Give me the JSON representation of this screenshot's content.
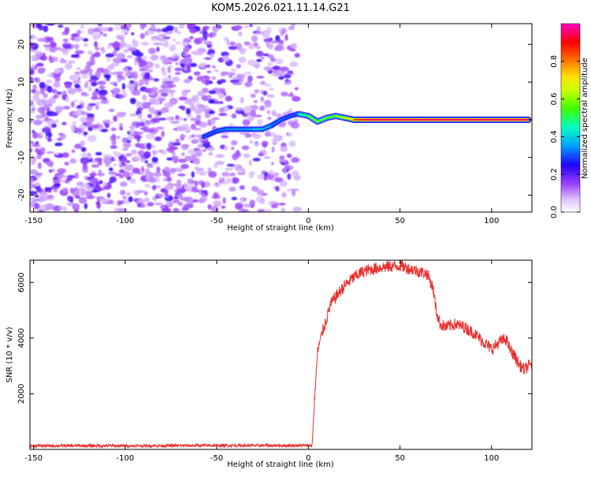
{
  "title": "KOM5.2026.021.11.14.G21",
  "chart_data": [
    {
      "type": "heatmap",
      "xlabel": "Height of straight line (km)",
      "ylabel": "Frequency (Hz)",
      "xlim": [
        -152,
        122
      ],
      "ylim": [
        -24.5,
        25.5
      ],
      "xticks": [
        -150,
        -100,
        -50,
        0,
        50,
        100
      ],
      "yticks": [
        -20,
        -10,
        0,
        10,
        20
      ],
      "colorbar": {
        "label": "Normalized spectral amplitude",
        "range": [
          0,
          1
        ],
        "ticks": [
          0.0,
          0.2,
          0.4,
          0.6,
          0.8
        ],
        "colormap": [
          "#ffffff",
          "#d8b0ff",
          "#8000ff",
          "#0000ff",
          "#00c8ff",
          "#00ff80",
          "#a0ff00",
          "#ffff00",
          "#ff8000",
          "#ff0000",
          "#ff00c0"
        ]
      },
      "noise_region_x": [
        -152,
        -6
      ],
      "echo_track": {
        "x": [
          -57,
          -50,
          -45,
          -40,
          -35,
          -30,
          -25,
          -20,
          -15,
          -10,
          -6,
          -5,
          0,
          5,
          10,
          15,
          20,
          25,
          30,
          60,
          90,
          120
        ],
        "y": [
          -4.5,
          -3,
          -2.5,
          -2.5,
          -2.5,
          -2.5,
          -2.5,
          -1.5,
          0,
          1,
          1.5,
          1.5,
          1,
          -0.5,
          0.5,
          1,
          0.5,
          0,
          0,
          0,
          0,
          0
        ],
        "amplitude": [
          0.3,
          0.32,
          0.35,
          0.36,
          0.36,
          0.38,
          0.42,
          0.35,
          0.33,
          0.3,
          0.3,
          0.45,
          0.55,
          0.6,
          0.55,
          0.6,
          0.65,
          0.8,
          0.95,
          0.95,
          0.95,
          0.95
        ]
      }
    },
    {
      "type": "line",
      "xlabel": "Height of straight line (km)",
      "ylabel": "SNR (10 * v/v)",
      "xlim": [
        -152,
        122
      ],
      "ylim": [
        0,
        6800
      ],
      "xticks": [
        -150,
        -100,
        -50,
        0,
        50,
        100
      ],
      "yticks": [
        2000,
        4000,
        6000
      ],
      "color": "#e8302e",
      "series": [
        {
          "x": [
            -152,
            -100,
            -50,
            -10,
            2,
            4,
            5,
            6,
            8,
            10,
            12,
            15,
            20,
            25,
            30,
            40,
            50,
            55,
            60,
            65,
            68,
            70,
            72,
            75,
            80,
            85,
            90,
            95,
            100,
            105,
            108,
            110,
            113,
            115,
            118,
            120,
            122
          ],
          "y": [
            130,
            130,
            140,
            140,
            140,
            2500,
            3500,
            3800,
            4300,
            4700,
            5200,
            5500,
            5900,
            6200,
            6400,
            6550,
            6600,
            6500,
            6400,
            6300,
            5800,
            4900,
            4500,
            4400,
            4500,
            4400,
            4200,
            3900,
            3600,
            3900,
            3950,
            3600,
            3300,
            3050,
            2850,
            3000,
            3050
          ]
        }
      ]
    }
  ]
}
